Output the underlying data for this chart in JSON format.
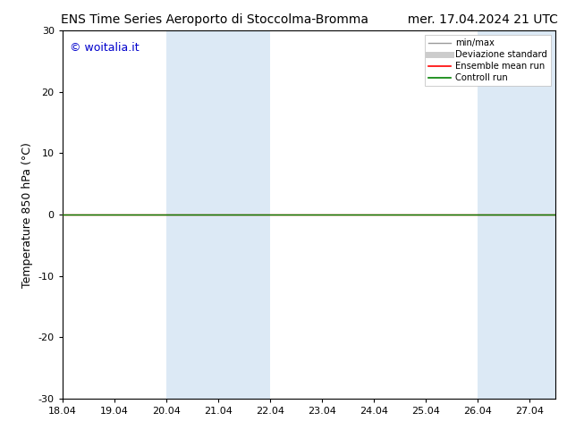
{
  "title_left": "ENS Time Series Aeroporto di Stoccolma-Bromma",
  "title_right": "mer. 17.04.2024 21 UTC",
  "ylabel": "Temperature 850 hPa (°C)",
  "ylim": [
    -30,
    30
  ],
  "yticks": [
    -30,
    -20,
    -10,
    0,
    10,
    20,
    30
  ],
  "xtick_labels": [
    "18.04",
    "19.04",
    "20.04",
    "21.04",
    "22.04",
    "23.04",
    "24.04",
    "25.04",
    "26.04",
    "27.04"
  ],
  "x_positions": [
    18.04,
    19.04,
    20.04,
    21.04,
    22.04,
    23.04,
    24.04,
    25.04,
    26.04,
    27.04
  ],
  "x_min": 18.04,
  "x_max": 27.54,
  "bg_color": "#ffffff",
  "plot_bg_color": "#ffffff",
  "shaded_bands": [
    {
      "x_start": 20.04,
      "x_end": 21.04
    },
    {
      "x_start": 21.04,
      "x_end": 22.04
    },
    {
      "x_start": 26.04,
      "x_end": 27.04
    },
    {
      "x_start": 27.04,
      "x_end": 27.54
    }
  ],
  "shaded_color": "#dce9f5",
  "ensemble_mean_color": "#ff0000",
  "control_run_color": "#008000",
  "min_max_color": "#999999",
  "std_color": "#cccccc",
  "watermark_text": "© woitalia.it",
  "watermark_color": "#0000cc",
  "legend_items": [
    {
      "label": "min/max",
      "color": "#999999",
      "lw": 1.0
    },
    {
      "label": "Deviazione standard",
      "color": "#cccccc",
      "lw": 5
    },
    {
      "label": "Ensemble mean run",
      "color": "#ff0000",
      "lw": 1.2
    },
    {
      "label": "Controll run",
      "color": "#008000",
      "lw": 1.2
    }
  ],
  "line_y": 0.0,
  "title_fontsize": 10,
  "tick_fontsize": 8,
  "ylabel_fontsize": 9,
  "watermark_fontsize": 9
}
